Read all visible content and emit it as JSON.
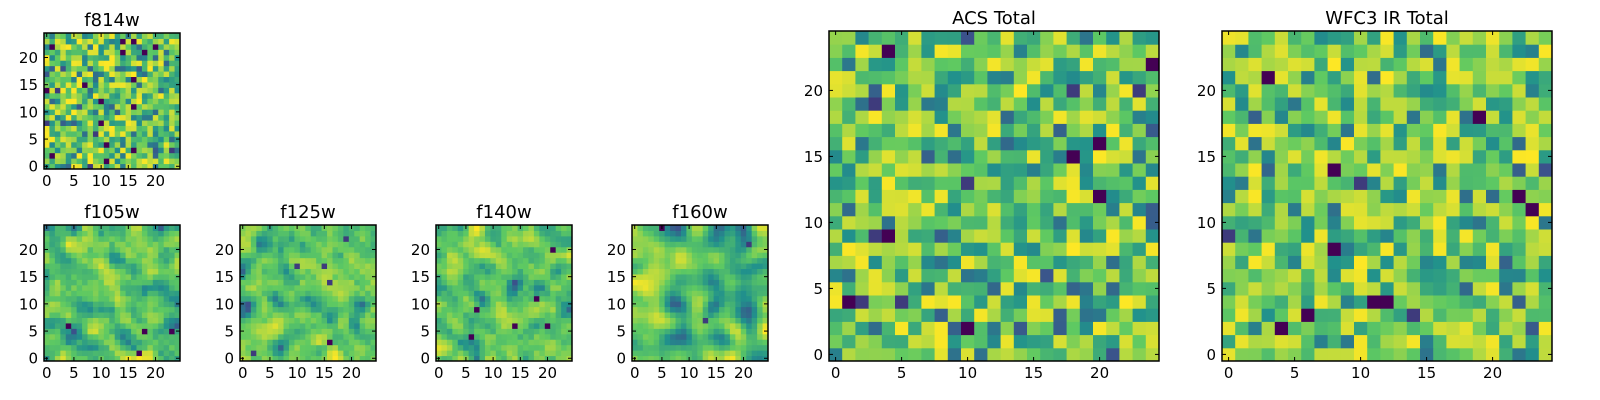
{
  "colors": {
    "viridis_stops": [
      "#440154",
      "#3b528b",
      "#21918c",
      "#5ec962",
      "#fde725"
    ]
  },
  "chart_data": [
    {
      "id": "f814w",
      "type": "heatmap",
      "title": "f814w",
      "grid_size": 25,
      "colormap": "viridis",
      "xticks": [
        0,
        5,
        10,
        15,
        20
      ],
      "yticks": [
        0,
        5,
        10,
        15,
        20
      ],
      "xlim": [
        -0.5,
        24.5
      ],
      "ylim": [
        -0.5,
        24.5
      ],
      "seed": 814,
      "smooth": 0,
      "low_spots": 22,
      "bright_bias": 0.55
    },
    {
      "id": "f105w",
      "type": "heatmap",
      "title": "f105w",
      "grid_size": 25,
      "colormap": "viridis",
      "xticks": [
        0,
        5,
        10,
        15,
        20
      ],
      "yticks": [
        0,
        5,
        10,
        15,
        20
      ],
      "xlim": [
        -0.5,
        24.5
      ],
      "ylim": [
        -0.5,
        24.5
      ],
      "seed": 105,
      "smooth": 1,
      "low_spots": 4,
      "bright_bias": 0.62
    },
    {
      "id": "f125w",
      "type": "heatmap",
      "title": "f125w",
      "grid_size": 25,
      "colormap": "viridis",
      "xticks": [
        0,
        5,
        10,
        15,
        20
      ],
      "yticks": [
        0,
        5,
        10,
        15,
        20
      ],
      "xlim": [
        -0.5,
        24.5
      ],
      "ylim": [
        -0.5,
        24.5
      ],
      "seed": 125,
      "smooth": 1,
      "low_spots": 6,
      "bright_bias": 0.55
    },
    {
      "id": "f140w",
      "type": "heatmap",
      "title": "f140w",
      "grid_size": 25,
      "colormap": "viridis",
      "xticks": [
        0,
        5,
        10,
        15,
        20
      ],
      "yticks": [
        0,
        5,
        10,
        15,
        20
      ],
      "xlim": [
        -0.5,
        24.5
      ],
      "ylim": [
        -0.5,
        24.5
      ],
      "seed": 140,
      "smooth": 1,
      "low_spots": 6,
      "bright_bias": 0.6
    },
    {
      "id": "f160w",
      "type": "heatmap",
      "title": "f160w",
      "grid_size": 25,
      "colormap": "viridis",
      "xticks": [
        0,
        5,
        10,
        15,
        20
      ],
      "yticks": [
        0,
        5,
        10,
        15,
        20
      ],
      "xlim": [
        -0.5,
        24.5
      ],
      "ylim": [
        -0.5,
        24.5
      ],
      "seed": 160,
      "smooth": 2,
      "low_spots": 3,
      "bright_bias": 0.72
    },
    {
      "id": "acs_total",
      "type": "heatmap",
      "title": "ACS Total",
      "grid_size": 25,
      "colormap": "viridis",
      "xticks": [
        0,
        5,
        10,
        15,
        20
      ],
      "yticks": [
        0,
        5,
        10,
        15,
        20
      ],
      "xlim": [
        -0.5,
        24.5
      ],
      "ylim": [
        -0.5,
        24.5
      ],
      "seed": 901,
      "smooth": 0,
      "low_spots": 16,
      "bright_bias": 0.58
    },
    {
      "id": "wfc3_ir_total",
      "type": "heatmap",
      "title": "WFC3 IR Total",
      "grid_size": 25,
      "colormap": "viridis",
      "xticks": [
        0,
        5,
        10,
        15,
        20
      ],
      "yticks": [
        0,
        5,
        10,
        15,
        20
      ],
      "xlim": [
        -0.5,
        24.5
      ],
      "ylim": [
        -0.5,
        24.5
      ],
      "seed": 902,
      "smooth": 0,
      "low_spots": 14,
      "bright_bias": 0.52
    }
  ]
}
